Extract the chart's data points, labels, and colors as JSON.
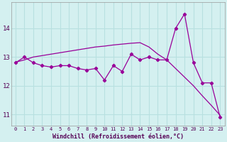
{
  "hours": [
    0,
    1,
    2,
    3,
    4,
    5,
    6,
    7,
    8,
    9,
    10,
    11,
    12,
    13,
    14,
    15,
    16,
    17,
    18,
    19,
    20,
    21,
    22,
    23
  ],
  "windchill": [
    12.8,
    13.0,
    12.8,
    12.7,
    12.65,
    12.7,
    12.7,
    12.6,
    12.55,
    12.6,
    12.2,
    12.7,
    12.5,
    13.1,
    12.9,
    13.0,
    12.9,
    12.9,
    14.0,
    14.5,
    12.8,
    12.1,
    12.1,
    10.9
  ],
  "regression": [
    12.82,
    12.9,
    13.0,
    13.05,
    13.1,
    13.15,
    13.2,
    13.25,
    13.3,
    13.35,
    13.38,
    13.42,
    13.45,
    13.48,
    13.5,
    13.35,
    13.1,
    12.9,
    12.6,
    12.3,
    12.0,
    11.65,
    11.32,
    10.97
  ],
  "line_color": "#990099",
  "bg_color": "#d4f0f0",
  "grid_color": "#b8e0e0",
  "xlabel": "Windchill (Refroidissement éolien,°C)",
  "ylim": [
    10.6,
    14.9
  ],
  "yticks": [
    11,
    12,
    13,
    14
  ],
  "xticks": [
    0,
    1,
    2,
    3,
    4,
    5,
    6,
    7,
    8,
    9,
    10,
    11,
    12,
    13,
    14,
    15,
    16,
    17,
    18,
    19,
    20,
    21,
    22,
    23
  ]
}
